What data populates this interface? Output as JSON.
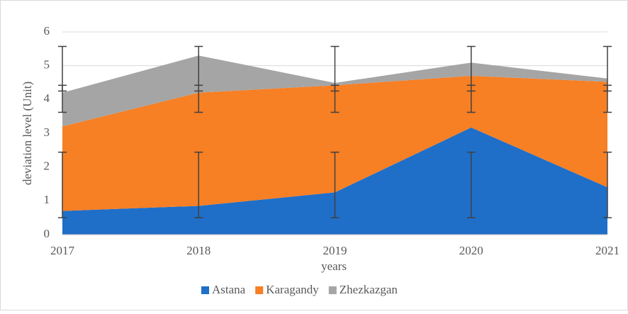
{
  "chart_data": {
    "type": "stacked_area",
    "x_label": "years",
    "y_label": "deviation level (Unit)",
    "categories": [
      "2017",
      "2018",
      "2019",
      "2020",
      "2021"
    ],
    "series": [
      {
        "name": "Astana",
        "color": "#1f6fc8",
        "values": [
          0.7,
          0.85,
          1.25,
          3.17,
          1.4
        ],
        "error_center": 1.47,
        "error": 0.97
      },
      {
        "name": "Karagandy",
        "color": "#f77f24",
        "values": [
          2.5,
          3.35,
          3.17,
          1.53,
          3.12
        ],
        "error_center": 4.02,
        "error": 0.4
      },
      {
        "name": "Zhezkazgan",
        "color": "#a5a5a5",
        "values": [
          1.0,
          1.1,
          0.07,
          0.39,
          0.1
        ],
        "error_center": 4.91,
        "error": 0.66
      }
    ],
    "ylim": [
      0,
      6
    ],
    "yticks": [
      0,
      1,
      2,
      3,
      4,
      5,
      6
    ],
    "grid": true,
    "legend": "bottom"
  }
}
